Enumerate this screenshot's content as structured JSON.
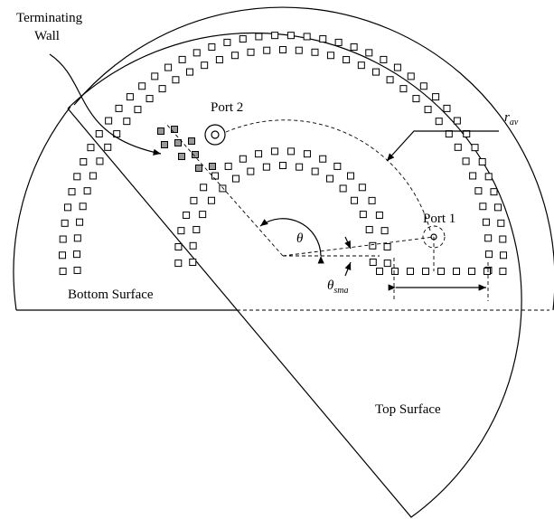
{
  "labels": {
    "terminating_wall": [
      "Terminating",
      "Wall"
    ],
    "port_2": "Port 2",
    "port_1": "Port 1",
    "r_av": {
      "base": "r",
      "sub": "av"
    },
    "theta": "θ",
    "theta_sma": {
      "base": "θ",
      "sub": "sma"
    },
    "bottom_surface": "Bottom Surface",
    "top_surface": "Top Surface"
  }
}
